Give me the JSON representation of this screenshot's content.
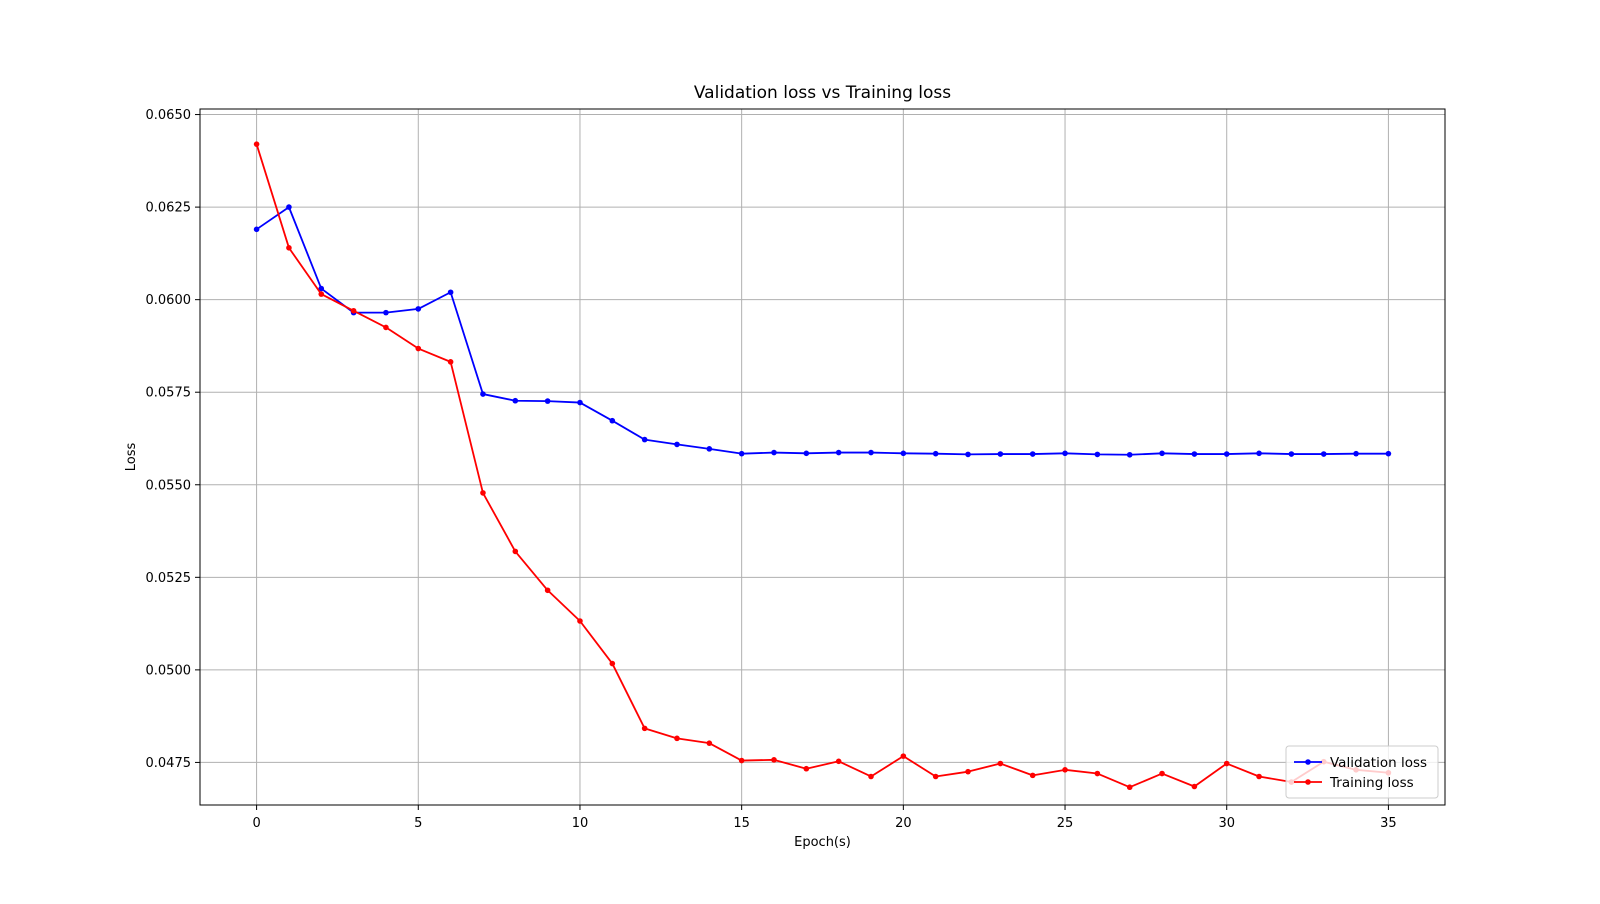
{
  "chart_data": {
    "type": "line",
    "title": "Validation loss vs Training loss",
    "xlabel": "Epoch(s)",
    "ylabel": "Loss",
    "xlim": [
      -1.75,
      36.75
    ],
    "ylim": [
      0.04635,
      0.06515
    ],
    "xticks": [
      0,
      5,
      10,
      15,
      20,
      25,
      30,
      35
    ],
    "yticks": [
      0.0475,
      0.05,
      0.0525,
      0.055,
      0.0575,
      0.06,
      0.0625,
      0.065
    ],
    "ytick_labels": [
      "0.0475",
      "0.0500",
      "0.0525",
      "0.0550",
      "0.0575",
      "0.0600",
      "0.0625",
      "0.0650"
    ],
    "grid": true,
    "legend_position": "lower-right",
    "x": [
      0,
      1,
      2,
      3,
      4,
      5,
      6,
      7,
      8,
      9,
      10,
      11,
      12,
      13,
      14,
      15,
      16,
      17,
      18,
      19,
      20,
      21,
      22,
      23,
      24,
      25,
      26,
      27,
      28,
      29,
      30,
      31,
      32,
      33,
      34,
      35
    ],
    "series": [
      {
        "name": "Validation loss",
        "color": "#0000ff",
        "marker": "dot",
        "values": [
          0.0619,
          0.0625,
          0.0603,
          0.05965,
          0.05965,
          0.05975,
          0.0602,
          0.05745,
          0.05727,
          0.05726,
          0.05722,
          0.05673,
          0.05622,
          0.05609,
          0.05597,
          0.05584,
          0.05587,
          0.05585,
          0.05587,
          0.05587,
          0.05585,
          0.05584,
          0.05582,
          0.05583,
          0.05583,
          0.05585,
          0.05582,
          0.05581,
          0.05585,
          0.05583,
          0.05583,
          0.05585,
          0.05583,
          0.05583,
          0.05584,
          0.05584
        ]
      },
      {
        "name": "Training loss",
        "color": "#ff0000",
        "marker": "dot",
        "values": [
          0.0642,
          0.0614,
          0.06015,
          0.0597,
          0.05925,
          0.05868,
          0.05832,
          0.05478,
          0.0532,
          0.05215,
          0.05132,
          0.05017,
          0.04842,
          0.04815,
          0.04802,
          0.04755,
          0.04757,
          0.04733,
          0.04753,
          0.04712,
          0.04767,
          0.04712,
          0.04725,
          0.04747,
          0.04715,
          0.0473,
          0.0472,
          0.04683,
          0.0472,
          0.04685,
          0.04747,
          0.04712,
          0.04697,
          0.04752,
          0.0473,
          0.04722
        ]
      }
    ]
  }
}
